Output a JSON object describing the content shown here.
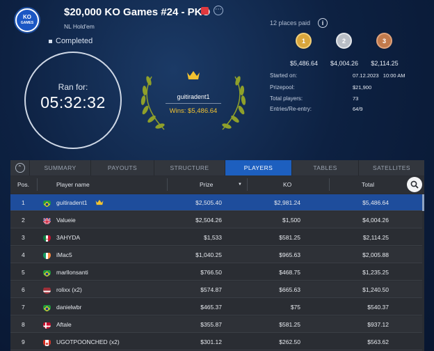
{
  "header": {
    "logo_top": "KO",
    "logo_bottom": "GAMES",
    "title": "$20,000 KO Games #24 - PKO",
    "subtitle": "NL Hold'em",
    "more_label": "⋯",
    "status": "Completed"
  },
  "timer": {
    "label": "Ran for:",
    "value": "05:32:32"
  },
  "winner": {
    "name": "guitiradent1",
    "wins": "Wins: $5,486.64"
  },
  "places": {
    "label": "12 places paid",
    "info": "i",
    "medals": [
      {
        "rank": "1",
        "amount": "$5,486.64",
        "color": "#d9a63c"
      },
      {
        "rank": "2",
        "amount": "$4,004.26",
        "color": "#b9bec6"
      },
      {
        "rank": "3",
        "amount": "$2,114.25",
        "color": "#c27a4c"
      }
    ]
  },
  "details": [
    {
      "key": "Started on:",
      "value": "07.12.2023   10:00 AM"
    },
    {
      "key": "Prizepool:",
      "value": "$21,900"
    },
    {
      "key": "Total players:",
      "value": "73"
    },
    {
      "key": "Entries/Re-entry:",
      "value": "64/9"
    }
  ],
  "tabs": [
    "SUMMARY",
    "PAYOUTS",
    "STRUCTURE",
    "PLAYERS",
    "TABLES",
    "SATELLITES"
  ],
  "active_tab": "PLAYERS",
  "columns": {
    "pos": "Pos.",
    "name": "Player name",
    "prize": "Prize",
    "ko": "KO",
    "total": "Total"
  },
  "rows": [
    {
      "pos": "1",
      "name": "guitiradent1",
      "prize": "$2,505.40",
      "ko": "$2,981.24",
      "total": "$5,486.64",
      "flag": "brazil",
      "crown": true
    },
    {
      "pos": "2",
      "name": "Valueie",
      "prize": "$2,504.26",
      "ko": "$1,500",
      "total": "$4,004.26",
      "flag": "uk"
    },
    {
      "pos": "3",
      "name": "3AHYDA",
      "prize": "$1,533",
      "ko": "$581.25",
      "total": "$2,114.25",
      "flag": "mexico"
    },
    {
      "pos": "4",
      "name": "iMac5",
      "prize": "$1,040.25",
      "ko": "$965.63",
      "total": "$2,005.88",
      "flag": "ireland"
    },
    {
      "pos": "5",
      "name": "marllonsanti",
      "prize": "$766.50",
      "ko": "$468.75",
      "total": "$1,235.25",
      "flag": "brazil"
    },
    {
      "pos": "6",
      "name": "rolixx (x2)",
      "prize": "$574.87",
      "ko": "$665.63",
      "total": "$1,240.50",
      "flag": "latvia"
    },
    {
      "pos": "7",
      "name": "danielwbr",
      "prize": "$465.37",
      "ko": "$75",
      "total": "$540.37",
      "flag": "brazil"
    },
    {
      "pos": "8",
      "name": "Aftale",
      "prize": "$355.87",
      "ko": "$581.25",
      "total": "$937.12",
      "flag": "denmark"
    },
    {
      "pos": "9",
      "name": "UGOTPOONCHED (x2)",
      "prize": "$301.12",
      "ko": "$262.50",
      "total": "$563.62",
      "flag": "canada"
    }
  ]
}
